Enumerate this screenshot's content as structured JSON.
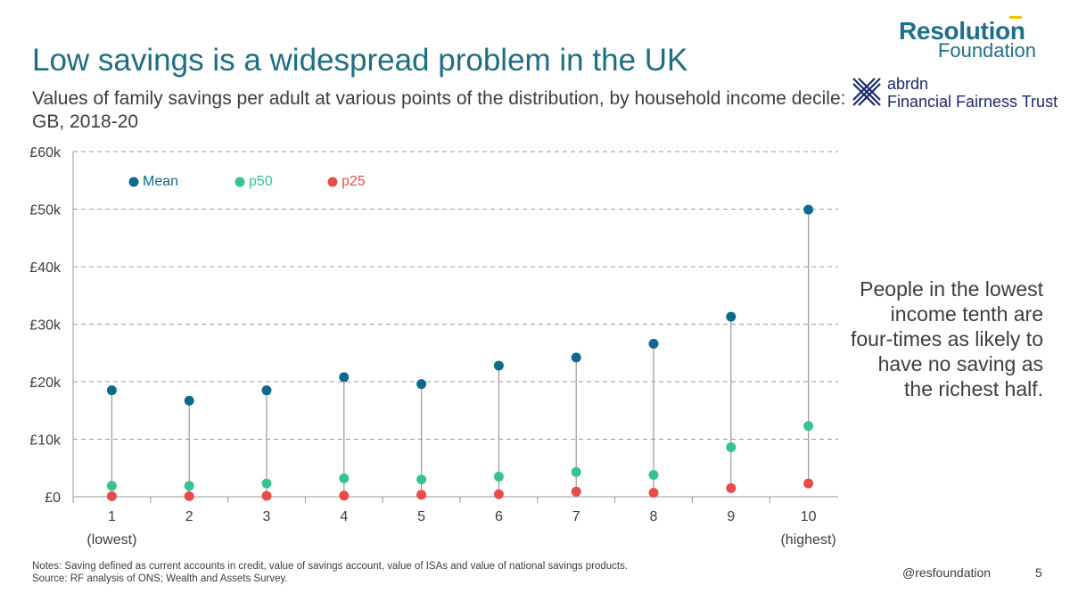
{
  "header": {
    "title": "Low savings is a widespread problem in the UK",
    "subtitle": "Values of family savings per adult at various points of the distribution, by household income decile: GB, 2018-20"
  },
  "logos": {
    "rf_name": "Resolution",
    "rf_sub": "Foundation",
    "abrdn_name": "abrdn",
    "abrdn_trust": "Financial Fairness Trust"
  },
  "callout": "People in the lowest income tenth are four-times as likely to have no saving as the richest half.",
  "footer": {
    "notes_line1": "Notes: Saving defined as current accounts in credit, value of savings account, value of ISAs and value of national savings products.",
    "notes_line2": "Source: RF analysis of ONS; Wealth and Assets Survey.",
    "handle": "@resfoundation",
    "page": "5"
  },
  "colors": {
    "title": "#1e6e81",
    "mean": "#0e6a8c",
    "p50": "#35c38f",
    "p25": "#e84b4b",
    "grid": "#9a9a9a",
    "stem": "#9a9a9a"
  },
  "chart_data": {
    "type": "scatter",
    "categories": [
      "1",
      "2",
      "3",
      "4",
      "5",
      "6",
      "7",
      "8",
      "9",
      "10"
    ],
    "category_sublabels": [
      "(lowest)",
      "",
      "",
      "",
      "",
      "",
      "",
      "",
      "",
      "(highest)"
    ],
    "series": [
      {
        "name": "Mean",
        "values": [
          18500,
          16700,
          18500,
          20800,
          19600,
          22800,
          24200,
          26600,
          31300,
          49900
        ]
      },
      {
        "name": "p50",
        "values": [
          1900,
          1900,
          2300,
          3200,
          3000,
          3500,
          4300,
          3800,
          8600,
          12300
        ]
      },
      {
        "name": "p25",
        "values": [
          100,
          100,
          150,
          200,
          350,
          450,
          900,
          700,
          1500,
          2300
        ]
      }
    ],
    "yticks": [
      "£0",
      "£10k",
      "£20k",
      "£30k",
      "£40k",
      "£50k",
      "£60k"
    ],
    "ylim": [
      0,
      60000
    ],
    "grid": true,
    "legend_position": "top-left"
  }
}
